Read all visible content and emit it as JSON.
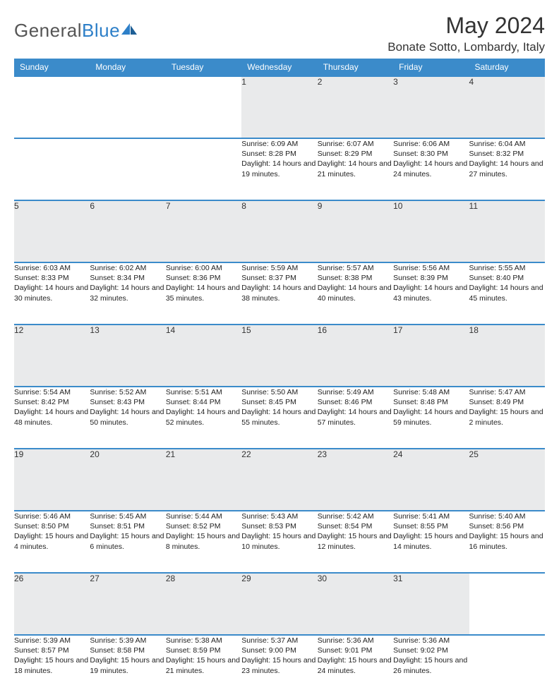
{
  "brand": {
    "name_part1": "General",
    "name_part2": "Blue"
  },
  "title": "May 2024",
  "location": "Bonate Sotto, Lombardy, Italy",
  "colors": {
    "header_bg": "#3b8bca",
    "header_text": "#ffffff",
    "daynum_bg": "#e9eaeb",
    "border": "#3b8bca",
    "text": "#222222",
    "brand_grey": "#555555",
    "brand_blue": "#2d7fc8",
    "background": "#ffffff"
  },
  "layout": {
    "columns": 7,
    "rows": 5,
    "cell_width_pct": 14.28
  },
  "weekdays": [
    "Sunday",
    "Monday",
    "Tuesday",
    "Wednesday",
    "Thursday",
    "Friday",
    "Saturday"
  ],
  "weeks": [
    [
      null,
      null,
      null,
      {
        "d": "1",
        "sr": "Sunrise: 6:09 AM",
        "ss": "Sunset: 8:28 PM",
        "dl": "Daylight: 14 hours and 19 minutes."
      },
      {
        "d": "2",
        "sr": "Sunrise: 6:07 AM",
        "ss": "Sunset: 8:29 PM",
        "dl": "Daylight: 14 hours and 21 minutes."
      },
      {
        "d": "3",
        "sr": "Sunrise: 6:06 AM",
        "ss": "Sunset: 8:30 PM",
        "dl": "Daylight: 14 hours and 24 minutes."
      },
      {
        "d": "4",
        "sr": "Sunrise: 6:04 AM",
        "ss": "Sunset: 8:32 PM",
        "dl": "Daylight: 14 hours and 27 minutes."
      }
    ],
    [
      {
        "d": "5",
        "sr": "Sunrise: 6:03 AM",
        "ss": "Sunset: 8:33 PM",
        "dl": "Daylight: 14 hours and 30 minutes."
      },
      {
        "d": "6",
        "sr": "Sunrise: 6:02 AM",
        "ss": "Sunset: 8:34 PM",
        "dl": "Daylight: 14 hours and 32 minutes."
      },
      {
        "d": "7",
        "sr": "Sunrise: 6:00 AM",
        "ss": "Sunset: 8:36 PM",
        "dl": "Daylight: 14 hours and 35 minutes."
      },
      {
        "d": "8",
        "sr": "Sunrise: 5:59 AM",
        "ss": "Sunset: 8:37 PM",
        "dl": "Daylight: 14 hours and 38 minutes."
      },
      {
        "d": "9",
        "sr": "Sunrise: 5:57 AM",
        "ss": "Sunset: 8:38 PM",
        "dl": "Daylight: 14 hours and 40 minutes."
      },
      {
        "d": "10",
        "sr": "Sunrise: 5:56 AM",
        "ss": "Sunset: 8:39 PM",
        "dl": "Daylight: 14 hours and 43 minutes."
      },
      {
        "d": "11",
        "sr": "Sunrise: 5:55 AM",
        "ss": "Sunset: 8:40 PM",
        "dl": "Daylight: 14 hours and 45 minutes."
      }
    ],
    [
      {
        "d": "12",
        "sr": "Sunrise: 5:54 AM",
        "ss": "Sunset: 8:42 PM",
        "dl": "Daylight: 14 hours and 48 minutes."
      },
      {
        "d": "13",
        "sr": "Sunrise: 5:52 AM",
        "ss": "Sunset: 8:43 PM",
        "dl": "Daylight: 14 hours and 50 minutes."
      },
      {
        "d": "14",
        "sr": "Sunrise: 5:51 AM",
        "ss": "Sunset: 8:44 PM",
        "dl": "Daylight: 14 hours and 52 minutes."
      },
      {
        "d": "15",
        "sr": "Sunrise: 5:50 AM",
        "ss": "Sunset: 8:45 PM",
        "dl": "Daylight: 14 hours and 55 minutes."
      },
      {
        "d": "16",
        "sr": "Sunrise: 5:49 AM",
        "ss": "Sunset: 8:46 PM",
        "dl": "Daylight: 14 hours and 57 minutes."
      },
      {
        "d": "17",
        "sr": "Sunrise: 5:48 AM",
        "ss": "Sunset: 8:48 PM",
        "dl": "Daylight: 14 hours and 59 minutes."
      },
      {
        "d": "18",
        "sr": "Sunrise: 5:47 AM",
        "ss": "Sunset: 8:49 PM",
        "dl": "Daylight: 15 hours and 2 minutes."
      }
    ],
    [
      {
        "d": "19",
        "sr": "Sunrise: 5:46 AM",
        "ss": "Sunset: 8:50 PM",
        "dl": "Daylight: 15 hours and 4 minutes."
      },
      {
        "d": "20",
        "sr": "Sunrise: 5:45 AM",
        "ss": "Sunset: 8:51 PM",
        "dl": "Daylight: 15 hours and 6 minutes."
      },
      {
        "d": "21",
        "sr": "Sunrise: 5:44 AM",
        "ss": "Sunset: 8:52 PM",
        "dl": "Daylight: 15 hours and 8 minutes."
      },
      {
        "d": "22",
        "sr": "Sunrise: 5:43 AM",
        "ss": "Sunset: 8:53 PM",
        "dl": "Daylight: 15 hours and 10 minutes."
      },
      {
        "d": "23",
        "sr": "Sunrise: 5:42 AM",
        "ss": "Sunset: 8:54 PM",
        "dl": "Daylight: 15 hours and 12 minutes."
      },
      {
        "d": "24",
        "sr": "Sunrise: 5:41 AM",
        "ss": "Sunset: 8:55 PM",
        "dl": "Daylight: 15 hours and 14 minutes."
      },
      {
        "d": "25",
        "sr": "Sunrise: 5:40 AM",
        "ss": "Sunset: 8:56 PM",
        "dl": "Daylight: 15 hours and 16 minutes."
      }
    ],
    [
      {
        "d": "26",
        "sr": "Sunrise: 5:39 AM",
        "ss": "Sunset: 8:57 PM",
        "dl": "Daylight: 15 hours and 18 minutes."
      },
      {
        "d": "27",
        "sr": "Sunrise: 5:39 AM",
        "ss": "Sunset: 8:58 PM",
        "dl": "Daylight: 15 hours and 19 minutes."
      },
      {
        "d": "28",
        "sr": "Sunrise: 5:38 AM",
        "ss": "Sunset: 8:59 PM",
        "dl": "Daylight: 15 hours and 21 minutes."
      },
      {
        "d": "29",
        "sr": "Sunrise: 5:37 AM",
        "ss": "Sunset: 9:00 PM",
        "dl": "Daylight: 15 hours and 23 minutes."
      },
      {
        "d": "30",
        "sr": "Sunrise: 5:36 AM",
        "ss": "Sunset: 9:01 PM",
        "dl": "Daylight: 15 hours and 24 minutes."
      },
      {
        "d": "31",
        "sr": "Sunrise: 5:36 AM",
        "ss": "Sunset: 9:02 PM",
        "dl": "Daylight: 15 hours and 26 minutes."
      },
      null
    ]
  ]
}
